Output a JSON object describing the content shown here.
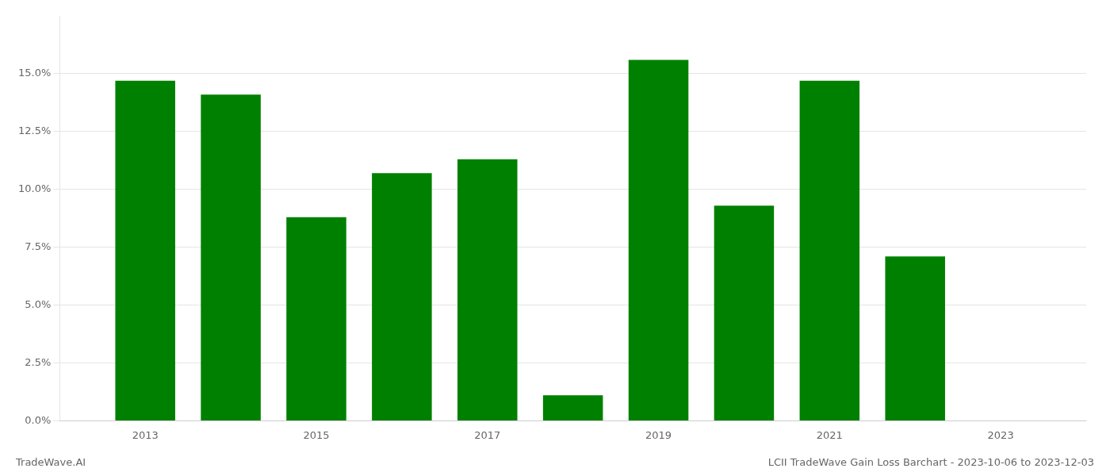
{
  "chart_data": {
    "type": "bar",
    "title": "LCII TradeWave Gain Loss Barchart - 2023-10-06 to 2023-12-03",
    "annotations": [
      "TradeWave.AI"
    ],
    "x": [
      2013,
      2014,
      2015,
      2016,
      2017,
      2018,
      2019,
      2020,
      2021,
      2022,
      2023
    ],
    "values": [
      0.147,
      0.141,
      0.088,
      0.107,
      0.113,
      0.011,
      0.156,
      0.093,
      0.147,
      0.071,
      0.0
    ],
    "color": "#008000",
    "xlim": [
      2012,
      2024
    ],
    "xticks": [
      2013,
      2015,
      2017,
      2019,
      2021,
      2023
    ],
    "ylim": [
      0,
      0.175
    ],
    "yticks": [
      {
        "value": 0.0,
        "label": "0.0%"
      },
      {
        "value": 0.025,
        "label": "2.5%"
      },
      {
        "value": 0.05,
        "label": "5.0%"
      },
      {
        "value": 0.075,
        "label": "7.5%"
      },
      {
        "value": 0.1,
        "label": "10.0%"
      },
      {
        "value": 0.125,
        "label": "12.5%"
      },
      {
        "value": 0.15,
        "label": "15.0%"
      }
    ],
    "grid": true
  }
}
